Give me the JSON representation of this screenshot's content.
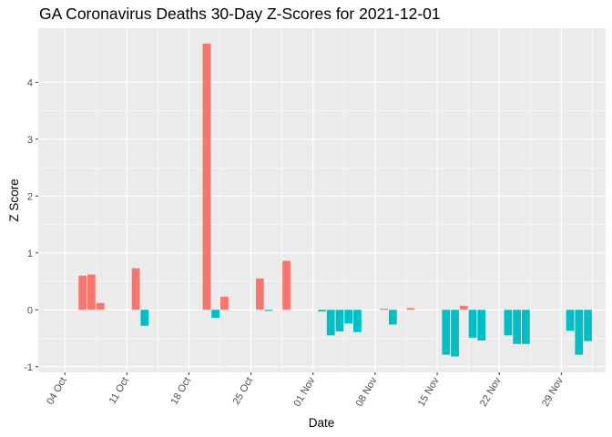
{
  "chart_data": {
    "type": "bar",
    "title": "GA Coronavirus Deaths 30-Day Z-Scores for 2021-12-01",
    "xlabel": "Date",
    "ylabel": "Z Score",
    "x_range": [
      "2021-10-01",
      "2021-12-04"
    ],
    "ylim": [
      -1.1,
      4.95
    ],
    "y_ticks": [
      -1,
      0,
      1,
      2,
      3,
      4
    ],
    "x_ticks": [
      {
        "date": "2021-10-04",
        "label": "04 Oct"
      },
      {
        "date": "2021-10-11",
        "label": "11 Oct"
      },
      {
        "date": "2021-10-18",
        "label": "18 Oct"
      },
      {
        "date": "2021-10-25",
        "label": "25 Oct"
      },
      {
        "date": "2021-11-01",
        "label": "01 Nov"
      },
      {
        "date": "2021-11-08",
        "label": "08 Nov"
      },
      {
        "date": "2021-11-15",
        "label": "15 Nov"
      },
      {
        "date": "2021-11-22",
        "label": "22 Nov"
      },
      {
        "date": "2021-11-29",
        "label": "29 Nov"
      }
    ],
    "grid": true,
    "legend": "none",
    "colors": {
      "positive": "#F8766D",
      "negative": "#00BFC4",
      "panel": "#EBEBEB",
      "grid": "#FFFFFF"
    },
    "bars": [
      {
        "date": "2021-10-06",
        "value": 0.6
      },
      {
        "date": "2021-10-07",
        "value": 0.62
      },
      {
        "date": "2021-10-08",
        "value": 0.12
      },
      {
        "date": "2021-10-12",
        "value": 0.73
      },
      {
        "date": "2021-10-13",
        "value": -0.28
      },
      {
        "date": "2021-10-20",
        "value": 4.68
      },
      {
        "date": "2021-10-21",
        "value": -0.14
      },
      {
        "date": "2021-10-22",
        "value": 0.23
      },
      {
        "date": "2021-10-26",
        "value": 0.55
      },
      {
        "date": "2021-10-27",
        "value": -0.02
      },
      {
        "date": "2021-10-29",
        "value": 0.86
      },
      {
        "date": "2021-11-02",
        "value": -0.03
      },
      {
        "date": "2021-11-03",
        "value": -0.45
      },
      {
        "date": "2021-11-04",
        "value": -0.38
      },
      {
        "date": "2021-11-05",
        "value": -0.24
      },
      {
        "date": "2021-11-06",
        "value": -0.39
      },
      {
        "date": "2021-11-09",
        "value": 0.02
      },
      {
        "date": "2021-11-10",
        "value": -0.26
      },
      {
        "date": "2021-11-12",
        "value": 0.03
      },
      {
        "date": "2021-11-16",
        "value": -0.79
      },
      {
        "date": "2021-11-17",
        "value": -0.82
      },
      {
        "date": "2021-11-18",
        "value": 0.07
      },
      {
        "date": "2021-11-19",
        "value": -0.49
      },
      {
        "date": "2021-11-20",
        "value": -0.54
      },
      {
        "date": "2021-11-23",
        "value": -0.45
      },
      {
        "date": "2021-11-24",
        "value": -0.6
      },
      {
        "date": "2021-11-25",
        "value": -0.6
      },
      {
        "date": "2021-11-30",
        "value": -0.37
      },
      {
        "date": "2021-12-01",
        "value": -0.79
      },
      {
        "date": "2021-12-02",
        "value": -0.55
      }
    ]
  }
}
